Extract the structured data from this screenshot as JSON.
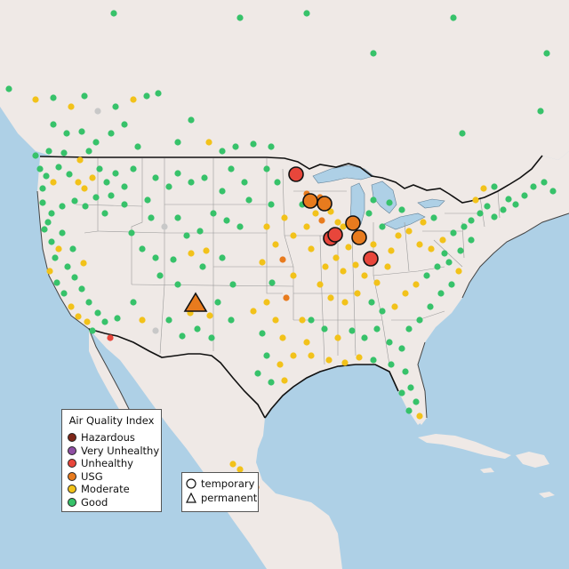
{
  "legend": {
    "title": "Air Quality Index",
    "categories": [
      {
        "label": "Hazardous",
        "color": "#7e2718"
      },
      {
        "label": "Very Unhealthy",
        "color": "#8f4fa3"
      },
      {
        "label": "Unhealthy",
        "color": "#e8463b"
      },
      {
        "label": "USG",
        "color": "#e87b1e"
      },
      {
        "label": "Moderate",
        "color": "#f2c21a"
      },
      {
        "label": "Good",
        "color": "#37c26a"
      }
    ]
  },
  "monitor_types": {
    "temporary": "temporary",
    "permanent": "permanent"
  },
  "colors": {
    "water": "#aed0e6",
    "land": "#efe9e6",
    "no_data": "#c8c8c8"
  }
}
